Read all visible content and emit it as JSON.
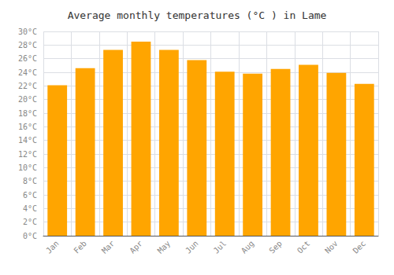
{
  "chart_data": {
    "type": "bar",
    "title": "Average monthly temperatures (°C ) in Lame",
    "categories": [
      "Jan",
      "Feb",
      "Mar",
      "Apr",
      "May",
      "Jun",
      "Jul",
      "Aug",
      "Sep",
      "Oct",
      "Nov",
      "Dec"
    ],
    "values": [
      22.1,
      24.6,
      27.3,
      28.5,
      27.3,
      25.8,
      24.1,
      23.8,
      24.5,
      25.1,
      23.9,
      22.3
    ],
    "color": "#FFA500",
    "ylim": [
      0,
      30
    ],
    "yticks": [
      {
        "value": 0,
        "label": "0°C"
      },
      {
        "value": 2,
        "label": "2°C"
      },
      {
        "value": 4,
        "label": "4°C"
      },
      {
        "value": 6,
        "label": "6°C"
      },
      {
        "value": 8,
        "label": "8°C"
      },
      {
        "value": 10,
        "label": "10°C"
      },
      {
        "value": 12,
        "label": "12°C"
      },
      {
        "value": 14,
        "label": "14°C"
      },
      {
        "value": 16,
        "label": "16°C"
      },
      {
        "value": 18,
        "label": "18°C"
      },
      {
        "value": 20,
        "label": "20°C"
      },
      {
        "value": 22,
        "label": "22°C"
      },
      {
        "value": 24,
        "label": "24°C"
      },
      {
        "value": 26,
        "label": "26°C"
      },
      {
        "value": 28,
        "label": "28°C"
      },
      {
        "value": 30,
        "label": "30°C"
      }
    ],
    "grid": true
  }
}
